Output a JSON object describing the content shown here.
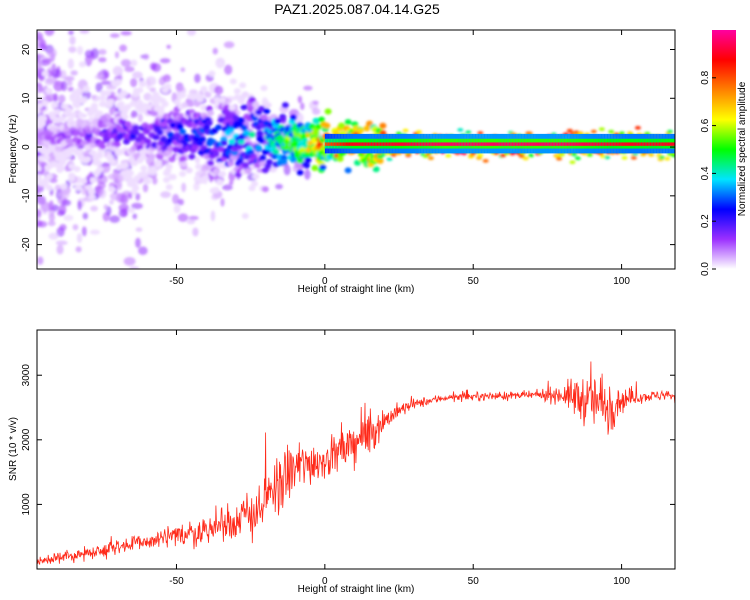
{
  "figure": {
    "title": "PAZ1.2025.087.04.14.G25"
  },
  "chart_data": [
    {
      "type": "heatmap",
      "title": "PAZ1.2025.087.04.14.G25",
      "xlabel": "Height of straight line (km)",
      "ylabel": "Frequency (Hz)",
      "xlim": [
        -97,
        118
      ],
      "ylim": [
        -25,
        24
      ],
      "x_ticks": [
        -50,
        0,
        50,
        100
      ],
      "y_ticks": [
        -20,
        -10,
        0,
        10,
        20
      ],
      "colorbar": {
        "label": "Normalized spectral amplitude",
        "range": [
          0.0,
          1.0
        ],
        "ticks": [
          0.0,
          0.2,
          0.4,
          0.6,
          0.8
        ],
        "colormap": [
          "#ffffff",
          "#9b30ff",
          "#0000ff",
          "#00e5ff",
          "#00ff00",
          "#ffff00",
          "#ff8000",
          "#ff0000",
          "#ff00a0"
        ]
      },
      "ridge": {
        "description_x": [
          -97,
          -60,
          -40,
          -20,
          -10,
          0,
          10,
          20,
          40,
          60,
          80,
          100,
          118
        ],
        "center_freq_hz": [
          2,
          3,
          2,
          1.5,
          1.5,
          0.5,
          0.5,
          0.5,
          0.5,
          0.5,
          0.5,
          0.5,
          0.5
        ],
        "peak_amplitude": [
          0.1,
          0.25,
          0.35,
          0.45,
          0.6,
          0.8,
          0.9,
          0.9,
          0.95,
          0.95,
          0.95,
          0.9,
          0.9
        ]
      },
      "grid": false
    },
    {
      "type": "line",
      "xlabel": "Height of straight line (km)",
      "ylabel": "SNR (10 * v/v)",
      "xlim": [
        -97,
        118
      ],
      "ylim": [
        0,
        3700
      ],
      "x_ticks": [
        -50,
        0,
        50,
        100
      ],
      "y_ticks": [
        1000,
        2000,
        3000
      ],
      "line_color": "#ff2a1a",
      "grid": false,
      "series": [
        {
          "x": [
            -97,
            -90,
            -80,
            -70,
            -60,
            -50,
            -40,
            -30,
            -25,
            -20,
            -15,
            -10,
            -5,
            0,
            5,
            10,
            15,
            20,
            25,
            30,
            40,
            50,
            60,
            70,
            80,
            85,
            90,
            95,
            100,
            105,
            110,
            118
          ],
          "values": [
            120,
            160,
            250,
            350,
            420,
            500,
            600,
            750,
            850,
            1000,
            1350,
            1550,
            1650,
            1700,
            1800,
            1950,
            2100,
            2300,
            2450,
            2550,
            2650,
            2670,
            2680,
            2690,
            2700,
            2650,
            2600,
            2550,
            2620,
            2660,
            2680,
            2690
          ],
          "noise_amplitude": [
            80,
            80,
            100,
            120,
            150,
            180,
            220,
            300,
            350,
            450,
            500,
            450,
            350,
            300,
            300,
            350,
            350,
            200,
            120,
            80,
            60,
            60,
            60,
            60,
            150,
            350,
            400,
            550,
            200,
            100,
            80,
            80
          ]
        }
      ]
    }
  ]
}
